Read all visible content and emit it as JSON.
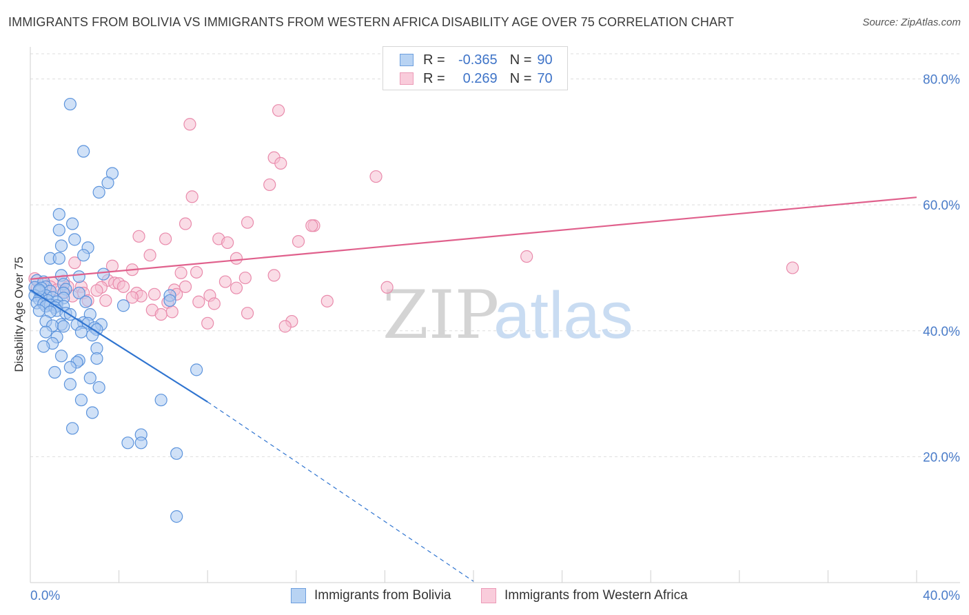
{
  "title": "IMMIGRANTS FROM BOLIVIA VS IMMIGRANTS FROM WESTERN AFRICA DISABILITY AGE OVER 75 CORRELATION CHART",
  "source": "Source: ZipAtlas.com",
  "watermark": {
    "zip": "ZIP",
    "atlas": "atlas"
  },
  "legend": {
    "rows": [
      {
        "r_label": "R =",
        "r_value": "-0.365",
        "n_label": "N =",
        "n_value": "90"
      },
      {
        "r_label": "R =",
        "r_value": "0.269",
        "n_label": "N =",
        "n_value": "70"
      }
    ]
  },
  "colors": {
    "bolivia_fill": "#a9c8f0",
    "bolivia_stroke": "#5b93dc",
    "bolivia_line": "#2f74d0",
    "wafrica_fill": "#f6bfd1",
    "wafrica_stroke": "#e98aab",
    "wafrica_line": "#e0608c",
    "tick_text": "#4a7cc9",
    "grid": "#dedede"
  },
  "chart_data": {
    "type": "scatter",
    "xlabel": "",
    "ylabel": "Disability Age Over 75",
    "xlim": [
      0,
      40
    ],
    "ylim": [
      0,
      84
    ],
    "x_tick_labels": [
      "0.0%",
      "40.0%"
    ],
    "y_ticks": [
      20,
      40,
      60,
      80
    ],
    "y_tick_labels": [
      "20.0%",
      "40.0%",
      "60.0%",
      "80.0%"
    ],
    "grid": "horizontal dashed",
    "series": [
      {
        "name": "Immigrants from Bolivia",
        "points": [
          [
            1.8,
            76.0
          ],
          [
            2.4,
            68.5
          ],
          [
            3.7,
            65.0
          ],
          [
            3.5,
            63.5
          ],
          [
            3.1,
            62.0
          ],
          [
            1.3,
            58.5
          ],
          [
            1.9,
            57.0
          ],
          [
            1.3,
            56.0
          ],
          [
            2.0,
            54.5
          ],
          [
            1.4,
            53.5
          ],
          [
            2.6,
            53.2
          ],
          [
            2.4,
            52.0
          ],
          [
            0.9,
            51.5
          ],
          [
            1.3,
            51.5
          ],
          [
            3.3,
            49.0
          ],
          [
            1.4,
            48.8
          ],
          [
            2.2,
            48.6
          ],
          [
            0.3,
            48.0
          ],
          [
            0.6,
            47.8
          ],
          [
            1.5,
            47.4
          ],
          [
            0.7,
            47.0
          ],
          [
            0.2,
            46.9
          ],
          [
            0.5,
            46.8
          ],
          [
            1.6,
            46.6
          ],
          [
            0.4,
            46.3
          ],
          [
            0.9,
            46.3
          ],
          [
            1.5,
            46.0
          ],
          [
            2.2,
            46.0
          ],
          [
            0.2,
            45.6
          ],
          [
            0.7,
            45.6
          ],
          [
            0.5,
            45.3
          ],
          [
            1.0,
            45.3
          ],
          [
            1.5,
            45.2
          ],
          [
            0.4,
            45.0
          ],
          [
            0.8,
            44.8
          ],
          [
            1.2,
            44.6
          ],
          [
            2.5,
            44.6
          ],
          [
            0.3,
            44.4
          ],
          [
            0.6,
            44.3
          ],
          [
            0.9,
            44.1
          ],
          [
            1.2,
            44.0
          ],
          [
            0.7,
            43.9
          ],
          [
            1.5,
            43.9
          ],
          [
            1.1,
            43.7
          ],
          [
            6.3,
            45.6
          ],
          [
            6.3,
            44.8
          ],
          [
            4.2,
            44.0
          ],
          [
            0.4,
            43.2
          ],
          [
            1.2,
            43.2
          ],
          [
            0.9,
            43.0
          ],
          [
            1.6,
            42.8
          ],
          [
            1.8,
            42.6
          ],
          [
            2.7,
            42.6
          ],
          [
            0.7,
            41.5
          ],
          [
            2.4,
            41.3
          ],
          [
            2.1,
            41.0
          ],
          [
            2.6,
            41.2
          ],
          [
            1.4,
            41.0
          ],
          [
            3.2,
            41.0
          ],
          [
            1.0,
            40.8
          ],
          [
            1.5,
            40.7
          ],
          [
            2.9,
            40.5
          ],
          [
            3.0,
            40.2
          ],
          [
            0.7,
            39.8
          ],
          [
            2.3,
            39.8
          ],
          [
            2.8,
            39.3
          ],
          [
            1.2,
            39.0
          ],
          [
            1.0,
            38.0
          ],
          [
            0.6,
            37.5
          ],
          [
            3.0,
            37.2
          ],
          [
            1.4,
            36.0
          ],
          [
            3.0,
            35.6
          ],
          [
            2.2,
            35.3
          ],
          [
            2.1,
            35.0
          ],
          [
            1.8,
            34.2
          ],
          [
            1.1,
            33.4
          ],
          [
            7.5,
            33.8
          ],
          [
            2.7,
            32.5
          ],
          [
            1.8,
            31.5
          ],
          [
            3.1,
            31.0
          ],
          [
            5.9,
            29.0
          ],
          [
            2.3,
            29.0
          ],
          [
            2.8,
            27.0
          ],
          [
            1.9,
            24.5
          ],
          [
            5.0,
            23.5
          ],
          [
            5.0,
            22.2
          ],
          [
            4.4,
            22.2
          ],
          [
            6.6,
            20.5
          ],
          [
            6.6,
            10.5
          ],
          [
            0.4,
            46.5
          ]
        ]
      },
      {
        "name": "Immigrants from Western Africa",
        "points": [
          [
            11.2,
            75.0
          ],
          [
            7.2,
            72.8
          ],
          [
            11.0,
            67.5
          ],
          [
            11.3,
            66.6
          ],
          [
            15.6,
            64.5
          ],
          [
            10.8,
            63.2
          ],
          [
            7.3,
            61.3
          ],
          [
            9.8,
            57.2
          ],
          [
            7.0,
            57.0
          ],
          [
            12.8,
            56.7
          ],
          [
            12.7,
            56.7
          ],
          [
            4.9,
            55.0
          ],
          [
            6.1,
            54.6
          ],
          [
            8.5,
            54.6
          ],
          [
            12.1,
            54.2
          ],
          [
            8.9,
            54.0
          ],
          [
            5.4,
            52.0
          ],
          [
            22.4,
            51.8
          ],
          [
            9.3,
            51.5
          ],
          [
            2.0,
            50.8
          ],
          [
            3.7,
            50.3
          ],
          [
            4.6,
            49.7
          ],
          [
            34.4,
            50.0
          ],
          [
            6.8,
            49.2
          ],
          [
            7.5,
            49.3
          ],
          [
            11.0,
            48.8
          ],
          [
            9.7,
            48.4
          ],
          [
            3.5,
            48.0
          ],
          [
            3.8,
            47.6
          ],
          [
            1.5,
            47.9
          ],
          [
            8.8,
            47.8
          ],
          [
            4.0,
            47.5
          ],
          [
            1.0,
            47.6
          ],
          [
            0.6,
            47.4
          ],
          [
            1.7,
            47.0
          ],
          [
            2.3,
            47.0
          ],
          [
            3.2,
            46.9
          ],
          [
            0.3,
            46.8
          ],
          [
            9.3,
            46.8
          ],
          [
            16.1,
            46.9
          ],
          [
            7.0,
            47.0
          ],
          [
            4.2,
            47.0
          ],
          [
            6.5,
            46.5
          ],
          [
            3.0,
            46.4
          ],
          [
            1.5,
            46.2
          ],
          [
            4.8,
            46.0
          ],
          [
            2.4,
            46.0
          ],
          [
            6.6,
            45.8
          ],
          [
            5.6,
            45.8
          ],
          [
            1.9,
            45.5
          ],
          [
            0.5,
            45.5
          ],
          [
            8.1,
            45.6
          ],
          [
            5.0,
            45.5
          ],
          [
            4.6,
            45.3
          ],
          [
            2.6,
            44.8
          ],
          [
            3.4,
            44.8
          ],
          [
            13.4,
            44.7
          ],
          [
            7.6,
            44.6
          ],
          [
            6.2,
            44.5
          ],
          [
            8.3,
            44.3
          ],
          [
            5.5,
            43.3
          ],
          [
            6.4,
            43.0
          ],
          [
            5.9,
            42.6
          ],
          [
            9.8,
            42.8
          ],
          [
            11.8,
            41.5
          ],
          [
            8.0,
            41.2
          ],
          [
            11.5,
            40.7
          ],
          [
            0.2,
            48.3
          ],
          [
            0.9,
            47.0
          ],
          [
            1.2,
            46.5
          ]
        ]
      }
    ],
    "trendlines": [
      {
        "series": "Immigrants from Bolivia",
        "x": [
          0.0,
          8.0
        ],
        "y": [
          46.5,
          28.7
        ],
        "extended_to": [
          20.0,
          0.2
        ]
      },
      {
        "series": "Immigrants from Western Africa",
        "x": [
          0.0,
          40.0
        ],
        "y": [
          48.2,
          61.2
        ]
      }
    ]
  }
}
